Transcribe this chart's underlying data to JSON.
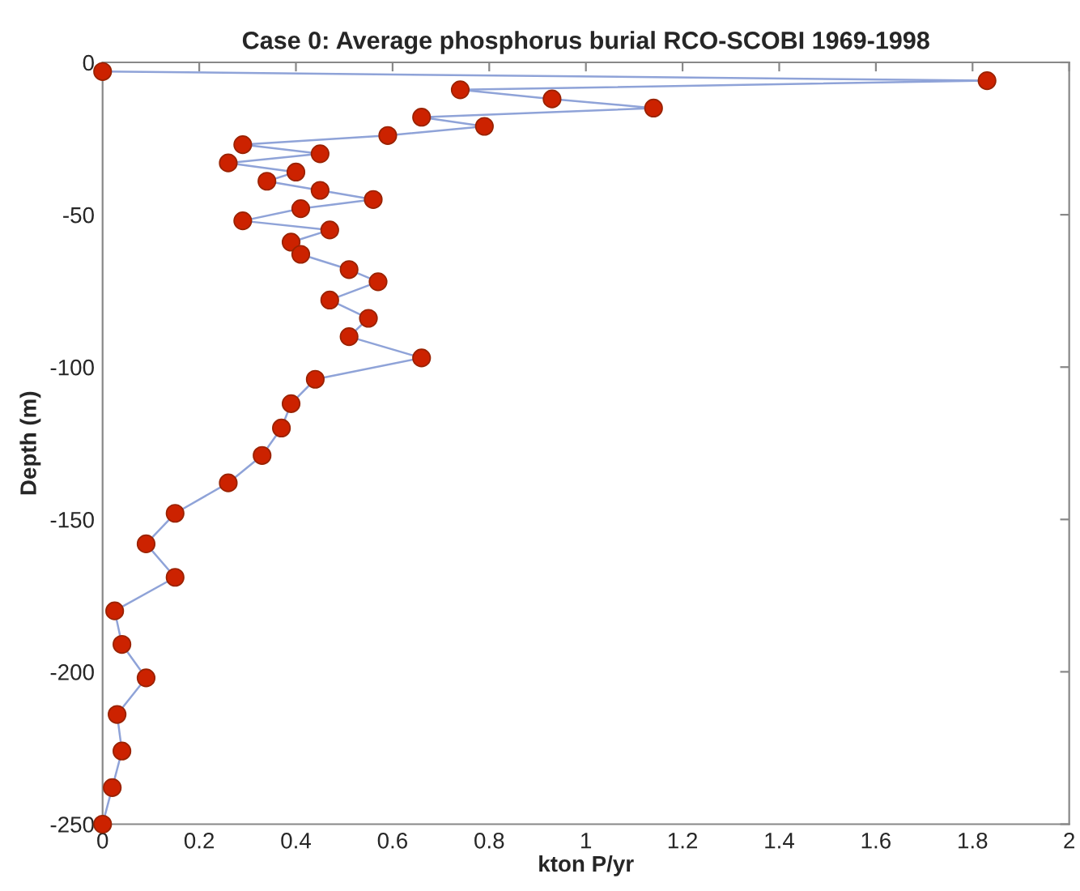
{
  "chart_data": {
    "type": "line",
    "title": "Case 0: Average phosphorus burial RCO-SCOBI 1969-1998",
    "xlabel": "kton P/yr",
    "ylabel": "Depth (m)",
    "marker": "circle",
    "line_style": "solid",
    "grid": false,
    "xlim": [
      0,
      2
    ],
    "xticks": [
      0,
      0.2,
      0.4,
      0.6,
      0.8,
      1,
      1.2,
      1.4,
      1.6,
      1.8,
      2
    ],
    "ylim": [
      -250,
      0
    ],
    "yticks": [
      -250,
      -200,
      -150,
      -100,
      -50,
      0
    ],
    "series": [
      {
        "color": "#cc2200",
        "x": [
          0.0,
          1.83,
          0.74,
          0.93,
          1.14,
          0.66,
          0.79,
          0.59,
          0.29,
          0.45,
          0.26,
          0.4,
          0.34,
          0.45,
          0.56,
          0.41,
          0.29,
          0.47,
          0.39,
          0.41,
          0.51,
          0.57,
          0.47,
          0.55,
          0.51,
          0.66,
          0.44,
          0.39,
          0.37,
          0.33,
          0.26,
          0.15,
          0.09,
          0.15,
          0.025,
          0.04,
          0.09,
          0.03,
          0.04,
          0.02,
          0.0
        ],
        "values": [
          -3,
          -6,
          -9,
          -12,
          -15,
          -18,
          -21,
          -24,
          -27,
          -30,
          -33,
          -36,
          -39,
          -42,
          -45,
          -48,
          -52,
          -55,
          -59,
          -63,
          -68,
          -72,
          -78,
          -84,
          -90,
          -97,
          -104,
          -112,
          -120,
          -129,
          -138,
          -148,
          -158,
          -169,
          -180,
          -191,
          -202,
          -214,
          -226,
          -238,
          -250
        ]
      }
    ]
  }
}
